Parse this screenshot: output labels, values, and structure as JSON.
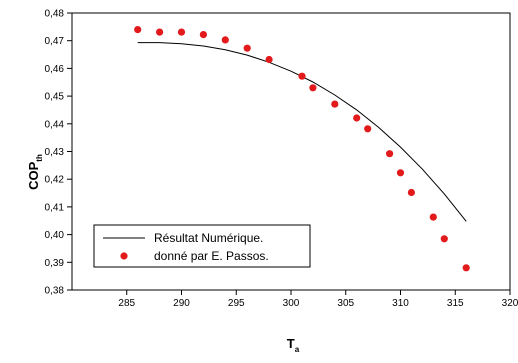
{
  "chart_data": {
    "type": "scatter",
    "title": "",
    "xlabel": "T",
    "xlabel_sub": "a",
    "ylabel": "COP",
    "ylabel_sub": "th",
    "xlim": [
      280,
      320
    ],
    "ylim": [
      0.38,
      0.48
    ],
    "xticks": [
      285,
      290,
      295,
      300,
      305,
      310,
      315,
      320
    ],
    "yticks": [
      0.38,
      0.39,
      0.4,
      0.41,
      0.42,
      0.43,
      0.44,
      0.45,
      0.46,
      0.47,
      0.48
    ],
    "grid": false,
    "legend_position": "lower-left",
    "series": [
      {
        "name": "Résultat Numérique.",
        "type": "line",
        "color": "#000000",
        "x": [
          286,
          288,
          290,
          292,
          294,
          296,
          298,
          300,
          302,
          304,
          306,
          308,
          310,
          312,
          314,
          316
        ],
        "y": [
          0.4693,
          0.4693,
          0.4689,
          0.4681,
          0.4667,
          0.4648,
          0.4622,
          0.459,
          0.4551,
          0.4504,
          0.445,
          0.4387,
          0.4316,
          0.4236,
          0.4147,
          0.4048
        ]
      },
      {
        "name": "donné par E. Passos.",
        "type": "scatter",
        "color": "#e31a1c",
        "x": [
          286,
          288,
          290,
          292,
          294,
          296,
          298,
          301,
          302,
          304,
          306,
          307,
          309,
          310,
          311,
          313,
          314,
          316
        ],
        "y": [
          0.474,
          0.4731,
          0.4731,
          0.4722,
          0.4703,
          0.4673,
          0.4632,
          0.4572,
          0.453,
          0.4471,
          0.4421,
          0.4382,
          0.4292,
          0.4223,
          0.4152,
          0.4063,
          0.3985,
          0.388
        ]
      }
    ]
  }
}
